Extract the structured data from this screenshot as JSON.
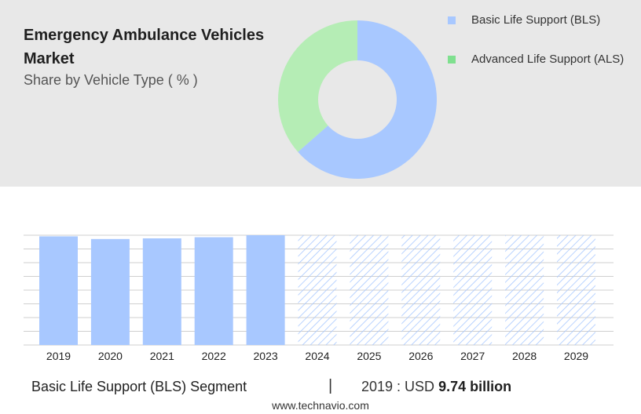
{
  "header": {
    "title": "Emergency Ambulance Vehicles Market",
    "subtitle": "Share by Vehicle Type ( % )"
  },
  "chart_data": [
    {
      "type": "pie",
      "title": "Emergency Ambulance Vehicles Market",
      "subtitle": "Share by Vehicle Type ( % )",
      "donut": true,
      "legend_position": "top-right",
      "series": [
        {
          "name": "Basic Life Support (BLS)",
          "value": 63.5,
          "color": "#a8c8ff"
        },
        {
          "name": "Advanced Life Support (ALS)",
          "value": 36.5,
          "color": "#b5edb5"
        }
      ],
      "legend_swatch_colors": [
        "#a8c8ff",
        "#7fe08f"
      ]
    },
    {
      "type": "bar",
      "categories": [
        "2019",
        "2020",
        "2021",
        "2022",
        "2023",
        "2024",
        "2025",
        "2026",
        "2027",
        "2028",
        "2029"
      ],
      "values": [
        9.74,
        9.5,
        9.56,
        9.66,
        9.84,
        null,
        null,
        null,
        null,
        null,
        null
      ],
      "forecast_categories": [
        "2024",
        "2025",
        "2026",
        "2027",
        "2028",
        "2029"
      ],
      "forecast_style": "hatched",
      "grid": true,
      "ylim": [
        0,
        9.84
      ],
      "bar_color": "#a8c8ff",
      "hatch_color": "#a8c8ff",
      "grid_color": "#cfcfcf"
    }
  ],
  "footer": {
    "segment_label": "Basic Life Support (BLS) Segment",
    "divider": "|",
    "value_prefix": "2019 : USD ",
    "value_number": "9.74 billion",
    "website": "www.technavio.com"
  }
}
